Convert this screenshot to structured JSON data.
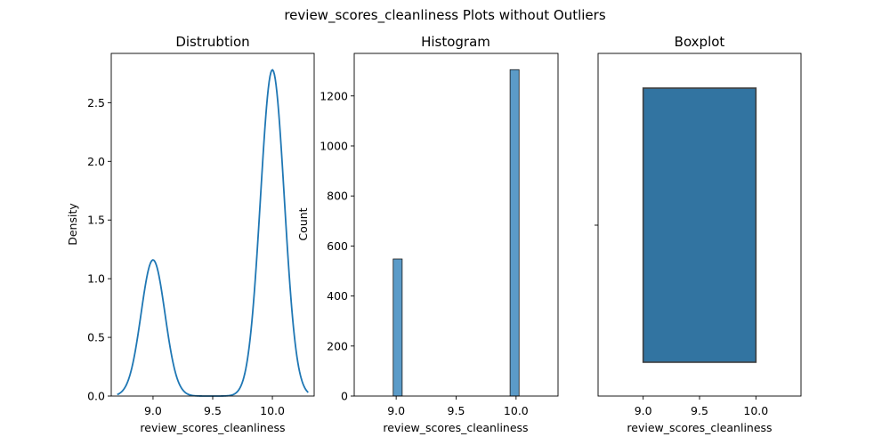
{
  "chart_data": {
    "suptitle": "review_scores_cleanliness Plots without Outliers",
    "panels": [
      {
        "type": "line",
        "kind": "kde",
        "title": "Distrubtion",
        "xlabel": "review_scores_cleanliness",
        "ylabel": "Density",
        "xlim": [
          8.65,
          10.35
        ],
        "ylim": [
          0,
          2.92
        ],
        "xticks": [
          "9.0",
          "9.5",
          "10.0"
        ],
        "yticks": [
          "0.0",
          "0.5",
          "1.0",
          "1.5",
          "2.0",
          "2.5"
        ],
        "color": "#1f77b4",
        "peaks": [
          {
            "x": 9.0,
            "density": 1.16
          },
          {
            "x": 10.0,
            "density": 2.78
          }
        ],
        "x_range": [
          8.7,
          10.3
        ]
      },
      {
        "type": "bar",
        "kind": "histogram",
        "title": "Histogram",
        "xlabel": "review_scores_cleanliness",
        "ylabel": "Count",
        "xlim": [
          8.65,
          10.35
        ],
        "ylim": [
          0,
          1370
        ],
        "xticks": [
          "9.0",
          "9.5",
          "10.0"
        ],
        "yticks": [
          "0",
          "200",
          "400",
          "600",
          "800",
          "1000",
          "1200"
        ],
        "color": "#5b9bc8",
        "bins": [
          {
            "x0": 8.975,
            "x1": 9.05,
            "count": 548
          },
          {
            "x0": 9.95,
            "x1": 10.025,
            "count": 1305
          }
        ]
      },
      {
        "type": "box",
        "kind": "boxplot",
        "title": "Boxplot",
        "xlabel": "review_scores_cleanliness",
        "xlim": [
          8.6,
          10.4
        ],
        "xticks": [
          "9.0",
          "9.5",
          "10.0"
        ],
        "color": "#3274a1",
        "edge_color": "#3f3f3f",
        "q1": 9.0,
        "median": 10.0,
        "q3": 10.0,
        "whisker_low": 9.0,
        "whisker_high": 10.0
      }
    ]
  }
}
